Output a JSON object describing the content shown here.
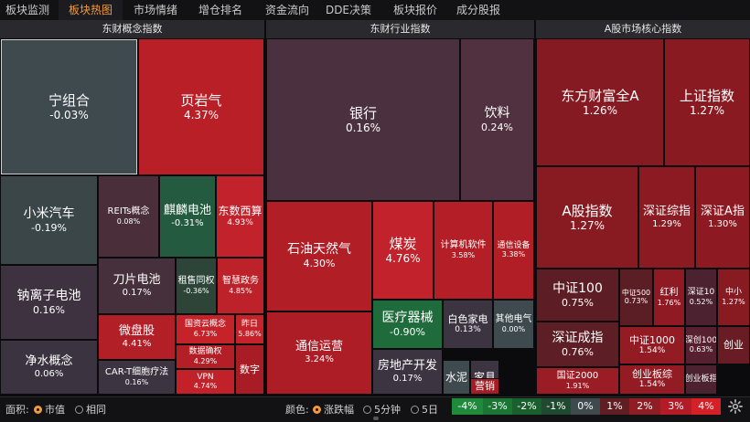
{
  "tabs": [
    "板块监测",
    "板块热图",
    "市场情绪",
    "增仓排名",
    "资金流向",
    "DDE决策",
    "板块报价",
    "成分股报价"
  ],
  "active_tab": 1,
  "sections": [
    "东财概念指数",
    "东财行业指数",
    "A股市场核心指数"
  ],
  "tiles": [
    {
      "name": "宁组合",
      "change": "-0.03%"
    },
    {
      "name": "页岩气",
      "change": "4.37%"
    },
    {
      "name": "小米汽车",
      "change": "-0.19%"
    },
    {
      "name": "REITs概念",
      "change": "0.08%"
    },
    {
      "name": "麒麟电池",
      "change": "-0.31%"
    },
    {
      "name": "东数西算",
      "change": "4.93%"
    },
    {
      "name": "钠离子电池",
      "change": "0.16%"
    },
    {
      "name": "刀片电池",
      "change": "0.17%"
    },
    {
      "name": "租售同权",
      "change": "-0.36%"
    },
    {
      "name": "智慧政务",
      "change": "4.85%"
    },
    {
      "name": "微盘股",
      "change": "4.41%"
    },
    {
      "name": "国资云概念",
      "change": "6.73%"
    },
    {
      "name": "昨日",
      "change": "5.86%"
    },
    {
      "name": "数据确权",
      "change": "4.29%"
    },
    {
      "name": "VPN",
      "change": "4.74%"
    },
    {
      "name": "数字",
      "change": ""
    },
    {
      "name": "净水概念",
      "change": "0.06%"
    },
    {
      "name": "CAR-T细胞疗法",
      "change": "0.16%"
    },
    {
      "name": "银行",
      "change": "0.16%"
    },
    {
      "name": "饮料",
      "change": "0.24%"
    },
    {
      "name": "石油天然气",
      "change": "4.30%"
    },
    {
      "name": "煤炭",
      "change": "4.76%"
    },
    {
      "name": "计算机软件",
      "change": "3.58%"
    },
    {
      "name": "通信设备",
      "change": "3.38%"
    },
    {
      "name": "医疗器械",
      "change": "-0.90%"
    },
    {
      "name": "白色家电",
      "change": "0.13%"
    },
    {
      "name": "其他电气",
      "change": "0.00%"
    },
    {
      "name": "通信运营",
      "change": "3.24%"
    },
    {
      "name": "房地产开发",
      "change": "0.17%"
    },
    {
      "name": "水泥",
      "change": ""
    },
    {
      "name": "家具",
      "change": ""
    },
    {
      "name": "营销",
      "change": ""
    },
    {
      "name": "东方财富全A",
      "change": "1.26%"
    },
    {
      "name": "上证指数",
      "change": "1.27%"
    },
    {
      "name": "A股指数",
      "change": "1.27%"
    },
    {
      "name": "深证综指",
      "change": "1.29%"
    },
    {
      "name": "深证A指",
      "change": "1.30%"
    },
    {
      "name": "中证100",
      "change": "0.75%"
    },
    {
      "name": "中证500",
      "change": "0.73%"
    },
    {
      "name": "红利",
      "change": "1.76%"
    },
    {
      "name": "深证10",
      "change": "0.52%"
    },
    {
      "name": "中小",
      "change": "1.27%"
    },
    {
      "name": "深证成指",
      "change": "0.76%"
    },
    {
      "name": "中证1000",
      "change": "1.54%"
    },
    {
      "name": "深创100",
      "change": "0.63%"
    },
    {
      "name": "创业",
      "change": ""
    },
    {
      "name": "国证2000",
      "change": "1.91%"
    },
    {
      "name": "创业板综",
      "change": "1.54%"
    },
    {
      "name": "创业板指",
      "change": ""
    }
  ],
  "bottom": {
    "area_label": "面积:",
    "area_opts": [
      "市值",
      "相同"
    ],
    "color_label": "颜色:",
    "color_opts": [
      "涨跌幅",
      "5分钟",
      "5日"
    ],
    "legend": [
      "-4%",
      "-3%",
      "-2%",
      "-1%",
      "0%",
      "1%",
      "2%",
      "3%",
      "4%"
    ]
  },
  "colors": {
    "accent": "#f39a3a",
    "up": "#c4202a",
    "down": "#1f6b3c",
    "flat": "#3e4a4e"
  }
}
